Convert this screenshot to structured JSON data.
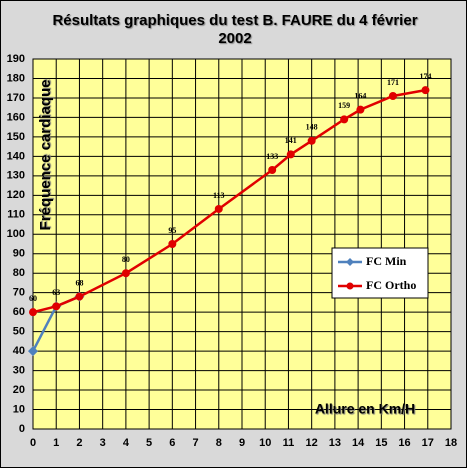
{
  "chart_data": {
    "type": "line",
    "title": "Résultats graphiques du test B. FAURE du 4 février 2002",
    "x_label": "Allure en Km/H",
    "y_label": "Fréquence cardiaque",
    "xlim": [
      0,
      18
    ],
    "xticks": [
      0,
      1,
      2,
      3,
      4,
      5,
      6,
      7,
      8,
      9,
      10,
      11,
      12,
      13,
      14,
      15,
      16,
      17,
      18
    ],
    "ylim": [
      0,
      190
    ],
    "yticks": [
      0,
      10,
      20,
      30,
      40,
      50,
      60,
      70,
      80,
      90,
      100,
      110,
      120,
      130,
      140,
      150,
      160,
      170,
      180,
      190
    ],
    "grid": true,
    "legend": "right",
    "series": [
      {
        "name": "FC Min",
        "color": "#4f81bd",
        "marker": "diamond",
        "data_labels": false,
        "x": [
          0,
          1,
          2
        ],
        "values": [
          40,
          63,
          68
        ]
      },
      {
        "name": "FC Ortho",
        "color": "#e00000",
        "marker": "circle",
        "data_labels": true,
        "x": [
          0,
          1,
          2,
          4,
          6,
          8,
          10.3,
          11.1,
          12,
          13.4,
          14.1,
          15.5,
          16.9
        ],
        "values": [
          60,
          63,
          68,
          80,
          95,
          113,
          133,
          141,
          148,
          159,
          164,
          171,
          174
        ]
      }
    ]
  }
}
